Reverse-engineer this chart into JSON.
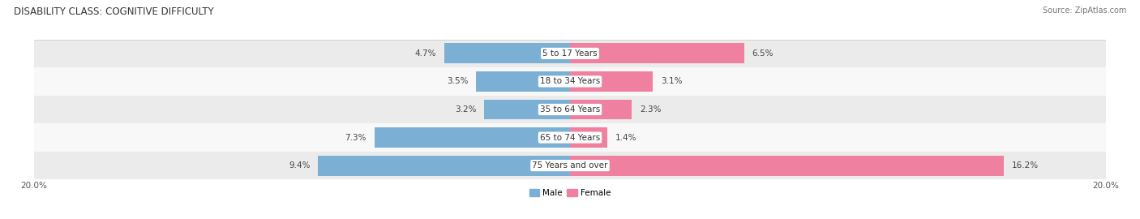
{
  "title": "DISABILITY CLASS: COGNITIVE DIFFICULTY",
  "source": "Source: ZipAtlas.com",
  "categories": [
    "5 to 17 Years",
    "18 to 34 Years",
    "35 to 64 Years",
    "65 to 74 Years",
    "75 Years and over"
  ],
  "male_values": [
    4.7,
    3.5,
    3.2,
    7.3,
    9.4
  ],
  "female_values": [
    6.5,
    3.1,
    2.3,
    1.4,
    16.2
  ],
  "max_val": 20.0,
  "male_color": "#7bafd4",
  "female_color": "#f080a0",
  "row_bg_colors": [
    "#ebebeb",
    "#f8f8f8",
    "#ebebeb",
    "#f8f8f8",
    "#ebebeb"
  ],
  "title_fontsize": 8.5,
  "label_fontsize": 7.5,
  "tick_fontsize": 7.5,
  "source_fontsize": 7,
  "value_fontsize": 7.5
}
